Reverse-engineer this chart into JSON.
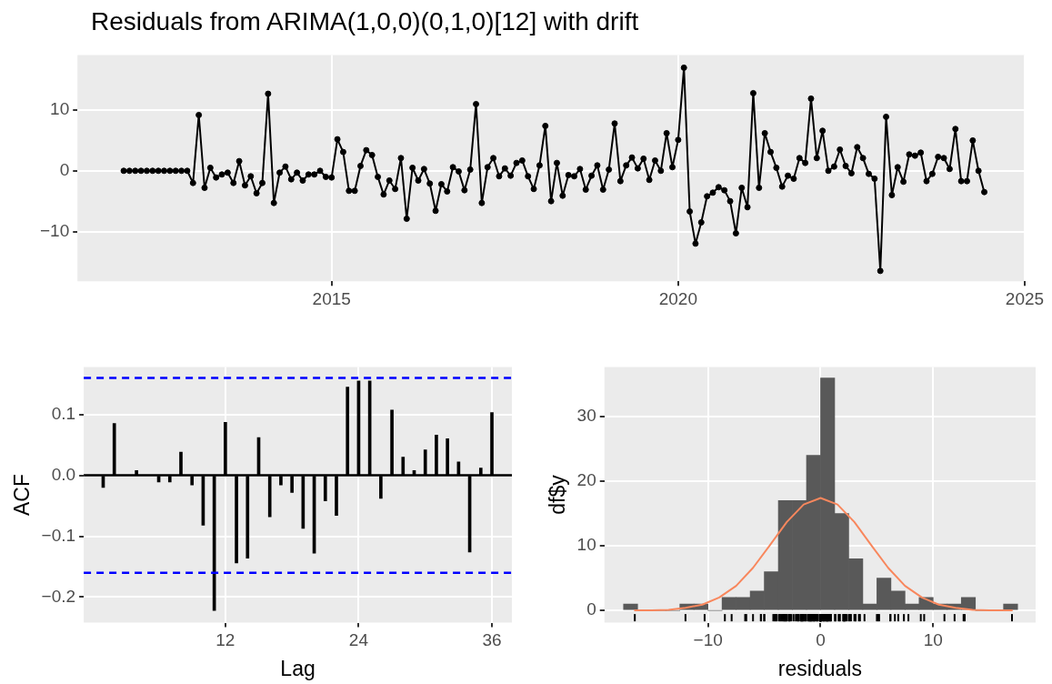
{
  "chart_data": [
    {
      "type": "line",
      "title": "Residuals from ARIMA(1,0,0)(0,1,0)[12] with drift",
      "marker": "circle",
      "color": "#000000",
      "grid": true,
      "x": [
        "2012-01",
        "2012-02",
        "2012-03",
        "2012-04",
        "2012-05",
        "2012-06",
        "2012-07",
        "2012-08",
        "2012-09",
        "2012-10",
        "2012-11",
        "2012-12",
        "2013-01",
        "2013-02",
        "2013-03",
        "2013-04",
        "2013-05",
        "2013-06",
        "2013-07",
        "2013-08",
        "2013-09",
        "2013-10",
        "2013-11",
        "2013-12",
        "2014-01",
        "2014-02",
        "2014-03",
        "2014-04",
        "2014-05",
        "2014-06",
        "2014-07",
        "2014-08",
        "2014-09",
        "2014-10",
        "2014-11",
        "2014-12",
        "2015-01",
        "2015-02",
        "2015-03",
        "2015-04",
        "2015-05",
        "2015-06",
        "2015-07",
        "2015-08",
        "2015-09",
        "2015-10",
        "2015-11",
        "2015-12",
        "2016-01",
        "2016-02",
        "2016-03",
        "2016-04",
        "2016-05",
        "2016-06",
        "2016-07",
        "2016-08",
        "2016-09",
        "2016-10",
        "2016-11",
        "2016-12",
        "2017-01",
        "2017-02",
        "2017-03",
        "2017-04",
        "2017-05",
        "2017-06",
        "2017-07",
        "2017-08",
        "2017-09",
        "2017-10",
        "2017-11",
        "2017-12",
        "2018-01",
        "2018-02",
        "2018-03",
        "2018-04",
        "2018-05",
        "2018-06",
        "2018-07",
        "2018-08",
        "2018-09",
        "2018-10",
        "2018-11",
        "2018-12",
        "2019-01",
        "2019-02",
        "2019-03",
        "2019-04",
        "2019-05",
        "2019-06",
        "2019-07",
        "2019-08",
        "2019-09",
        "2019-10",
        "2019-11",
        "2019-12",
        "2020-01",
        "2020-02",
        "2020-03",
        "2020-04",
        "2020-05",
        "2020-06",
        "2020-07",
        "2020-08",
        "2020-09",
        "2020-10",
        "2020-11",
        "2020-12",
        "2021-01",
        "2021-02",
        "2021-03",
        "2021-04",
        "2021-05",
        "2021-06",
        "2021-07",
        "2021-08",
        "2021-09",
        "2021-10",
        "2021-11",
        "2021-12",
        "2022-01",
        "2022-02",
        "2022-03",
        "2022-04",
        "2022-05",
        "2022-06",
        "2022-07",
        "2022-08",
        "2022-09",
        "2022-10",
        "2022-11",
        "2022-12",
        "2023-01",
        "2023-02",
        "2023-03",
        "2023-04",
        "2023-05",
        "2023-06",
        "2023-07",
        "2023-08",
        "2023-09",
        "2023-10",
        "2023-11",
        "2023-12",
        "2024-01",
        "2024-02",
        "2024-03",
        "2024-04",
        "2024-05",
        "2024-06"
      ],
      "values": [
        0,
        0,
        0,
        0,
        0,
        0,
        0,
        0,
        0,
        0,
        0,
        0,
        -2.0,
        9.2,
        -2.8,
        0.5,
        -1.1,
        -0.6,
        -0.3,
        -2.0,
        1.6,
        -2.4,
        -0.9,
        -3.7,
        -2.0,
        12.7,
        -5.3,
        -0.3,
        0.7,
        -1.4,
        -0.3,
        -1.6,
        -0.6,
        -0.6,
        0.0,
        -1.0,
        -1.1,
        5.2,
        3.1,
        -3.3,
        -3.3,
        0.8,
        3.4,
        2.6,
        -1.0,
        -3.9,
        -1.6,
        -3.0,
        2.1,
        -7.9,
        0.5,
        -1.6,
        0.3,
        -2.1,
        -6.6,
        -2.2,
        -3.4,
        0.6,
        -0.1,
        -3.2,
        0.2,
        11.0,
        -5.3,
        0.6,
        2.1,
        -0.9,
        0.4,
        -0.8,
        1.3,
        1.7,
        -0.9,
        -3.0,
        0.9,
        7.4,
        -5.0,
        1.3,
        -4.1,
        -0.7,
        -0.9,
        0.3,
        -3.1,
        -0.8,
        0.9,
        -3.1,
        0.2,
        7.8,
        -1.7,
        0.9,
        2.2,
        0.4,
        2.0,
        -1.5,
        1.7,
        0.0,
        6.2,
        0.6,
        5.1,
        17.0,
        -6.7,
        -12.0,
        -8.5,
        -4.2,
        -3.6,
        -2.7,
        -3.2,
        -5.0,
        -10.3,
        -2.8,
        -6.0,
        12.8,
        -2.8,
        6.2,
        3.1,
        0.5,
        -2.6,
        -0.8,
        -1.3,
        2.1,
        1.3,
        11.9,
        2.1,
        6.6,
        0,
        0.7,
        3.5,
        0.8,
        -0.4,
        3.9,
        2.1,
        -0.5,
        -1.3,
        -16.5,
        8.9,
        -4.0,
        0.6,
        -1.8,
        2.7,
        2.5,
        3.0,
        -1.7,
        -0.5,
        2.3,
        2.1,
        0.3,
        6.9,
        -1.7,
        -1.7,
        5.0,
        0,
        -3.5
      ],
      "xlim": [
        "2011-05",
        "2025-01"
      ],
      "xticks": [
        "2015",
        "2020",
        "2025"
      ],
      "ylim": [
        -18.2,
        19.1
      ],
      "yticks": [
        {
          "value": -10,
          "label": "−10"
        },
        0,
        10
      ]
    },
    {
      "type": "bar",
      "xlabel": "Lag",
      "ylabel": "ACF",
      "color": "#000000",
      "grid": true,
      "x": [
        1,
        2,
        3,
        4,
        5,
        6,
        7,
        8,
        9,
        10,
        11,
        12,
        13,
        14,
        15,
        16,
        17,
        18,
        19,
        20,
        21,
        22,
        23,
        24,
        25,
        26,
        27,
        28,
        29,
        30,
        31,
        32,
        33,
        34,
        35,
        36
      ],
      "values": [
        -0.02,
        0.085,
        0.0,
        0.008,
        0.0,
        -0.011,
        -0.011,
        0.038,
        -0.016,
        -0.082,
        -0.222,
        0.087,
        -0.144,
        -0.136,
        0.062,
        -0.068,
        -0.016,
        -0.028,
        -0.087,
        -0.128,
        -0.042,
        -0.066,
        0.145,
        0.155,
        0.155,
        -0.038,
        0.107,
        0.03,
        0.008,
        0.042,
        0.066,
        0.06,
        0.022,
        -0.126,
        0.012,
        0.103
      ],
      "xlim": [
        -0.75,
        37.8
      ],
      "xticks": [
        12,
        24,
        36
      ],
      "ylim": [
        -0.242,
        0.178
      ],
      "yticks": [
        {
          "value": -0.2,
          "label": "−0.2"
        },
        {
          "value": -0.1,
          "label": "−0.1"
        },
        {
          "value": 0,
          "label": "0.0"
        },
        0.1
      ],
      "ref_lines": [
        {
          "axis": "y",
          "value": 0.16,
          "color": "#0000ff",
          "line_style": "dashed"
        },
        {
          "axis": "y",
          "value": -0.16,
          "color": "#0000ff",
          "line_style": "dashed"
        },
        {
          "axis": "y",
          "value": 0,
          "color": "#000000",
          "line_style": "solid"
        }
      ]
    },
    {
      "type": "histogram",
      "xlabel": "residuals",
      "ylabel": "df$y",
      "grid": true,
      "series": [
        {
          "type": "histogram",
          "color": "#595959",
          "bins": [
            -17.5,
            -16.25,
            -15,
            -13.75,
            -12.5,
            -11.25,
            -10,
            -8.75,
            -7.5,
            -6.25,
            -5,
            -3.75,
            -2.5,
            -1.25,
            0,
            1.25,
            2.5,
            3.75,
            5,
            6.25,
            7.5,
            8.75,
            10,
            11.25,
            12.5,
            13.75,
            15,
            16.25,
            17.5
          ],
          "values": [
            1,
            0,
            0,
            0,
            1,
            1,
            0,
            2,
            2,
            3,
            6,
            17,
            17,
            24,
            36,
            15,
            8,
            1,
            5,
            3,
            1,
            2,
            1,
            1,
            2,
            0,
            0,
            1
          ]
        },
        {
          "type": "line",
          "color": "#f8875d",
          "x": [
            -16.5,
            -15,
            -13.5,
            -12,
            -10.5,
            -9,
            -7.5,
            -6,
            -4.5,
            -3,
            -1.5,
            0,
            1.5,
            3,
            4.5,
            6,
            7.5,
            9,
            10.5,
            12,
            13.5,
            15,
            16.5,
            17
          ],
          "values": [
            0,
            0,
            0.1,
            0.4,
            0.9,
            2.0,
            3.8,
            6.6,
            10.1,
            13.7,
            16.4,
            17.4,
            16.4,
            13.7,
            10.1,
            6.6,
            3.8,
            2.0,
            0.9,
            0.4,
            0.1,
            0,
            0,
            0
          ]
        }
      ],
      "xlim": [
        -19.2,
        19.1
      ],
      "xticks": [
        {
          "value": -10,
          "label": "−10"
        },
        0,
        10
      ],
      "ylim": [
        -1.9,
        37.7
      ],
      "yticks": [
        0,
        10,
        20,
        30
      ]
    }
  ]
}
